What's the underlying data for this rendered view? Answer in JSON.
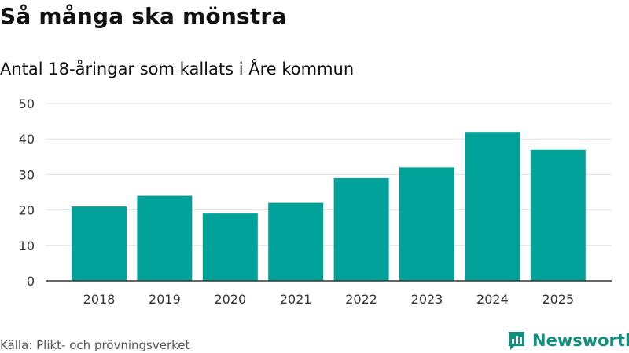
{
  "header": {
    "title": "Så många ska mönstra",
    "subtitle": "Antal 18-åringar som kallats i Åre kommun"
  },
  "footer": {
    "source": "Källa: Plikt- och prövningsverket",
    "brand": "Newsworthy",
    "brand_icon": "bar-chart-logo-icon"
  },
  "colors": {
    "bar": "#00a299",
    "grid": "#e0e0e0",
    "axis": "#333333",
    "brand": "#0f8f80"
  },
  "chart_data": {
    "type": "bar",
    "title": "Så många ska mönstra",
    "subtitle": "Antal 18-åringar som kallats i Åre kommun",
    "categories": [
      "2018",
      "2019",
      "2020",
      "2021",
      "2022",
      "2023",
      "2024",
      "2025"
    ],
    "values": [
      21,
      24,
      19,
      22,
      29,
      32,
      42,
      37
    ],
    "xlabel": "",
    "ylabel": "",
    "ylim": [
      0,
      50
    ],
    "yticks": [
      "0",
      "10",
      "20",
      "30",
      "40",
      "50"
    ],
    "grid": true,
    "legend": "none"
  }
}
